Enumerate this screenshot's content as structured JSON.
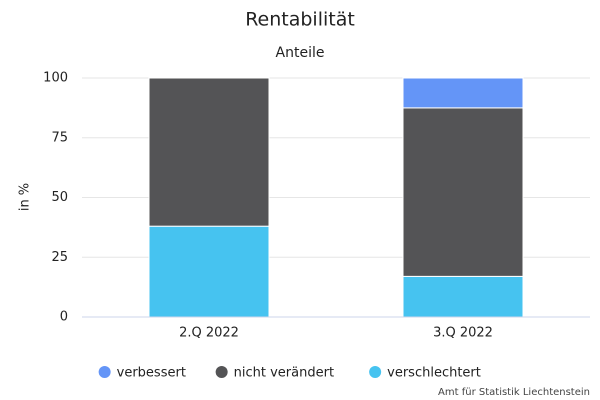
{
  "chart_data": {
    "type": "stacked_bar",
    "title": "Rentabilität",
    "subtitle": "Anteile",
    "y_label": "in %",
    "categories": [
      "2.Q 2022",
      "3.Q 2022"
    ],
    "series": [
      {
        "name": "verbessert",
        "color": "#6495f7",
        "values": [
          0,
          12.5
        ]
      },
      {
        "name": "nicht verändert",
        "color": "#545456",
        "values": [
          62,
          70.5
        ]
      },
      {
        "name": "verschlechtert",
        "color": "#46c3f0",
        "values": [
          38,
          17
        ]
      }
    ],
    "ylim": [
      0,
      100
    ],
    "yticks": [
      0,
      25,
      50,
      75,
      100
    ],
    "grid": true,
    "credits": "Amt für Statistik Liechtenstein"
  }
}
